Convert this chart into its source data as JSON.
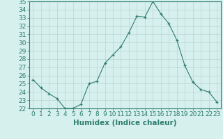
{
  "xlabel": "Humidex (Indice chaleur)",
  "ylabel": "",
  "x_values": [
    0,
    1,
    2,
    3,
    4,
    5,
    6,
    7,
    8,
    9,
    10,
    11,
    12,
    13,
    14,
    15,
    16,
    17,
    18,
    19,
    20,
    21,
    22,
    23
  ],
  "y_values": [
    25.5,
    24.5,
    23.8,
    23.2,
    22.0,
    22.0,
    22.5,
    25.0,
    25.3,
    27.5,
    28.5,
    29.5,
    31.2,
    33.2,
    33.1,
    35.0,
    33.5,
    32.3,
    30.3,
    27.2,
    25.2,
    24.3,
    24.0,
    22.8
  ],
  "ylim": [
    22,
    35
  ],
  "yticks": [
    22,
    23,
    24,
    25,
    26,
    27,
    28,
    29,
    30,
    31,
    32,
    33,
    34,
    35
  ],
  "xticks": [
    0,
    1,
    2,
    3,
    4,
    5,
    6,
    7,
    8,
    9,
    10,
    11,
    12,
    13,
    14,
    15,
    16,
    17,
    18,
    19,
    20,
    21,
    22,
    23
  ],
  "line_color": "#2e7d6e",
  "marker_color": "#2e7d6e",
  "bg_color": "#d6f0ee",
  "grid_color": "#b8d4d0",
  "axis_color": "#2e7d6e",
  "tick_label_color": "#2e7d6e",
  "xlabel_color": "#2e7d6e",
  "font_size_ticks": 6.5,
  "font_size_xlabel": 7.5
}
